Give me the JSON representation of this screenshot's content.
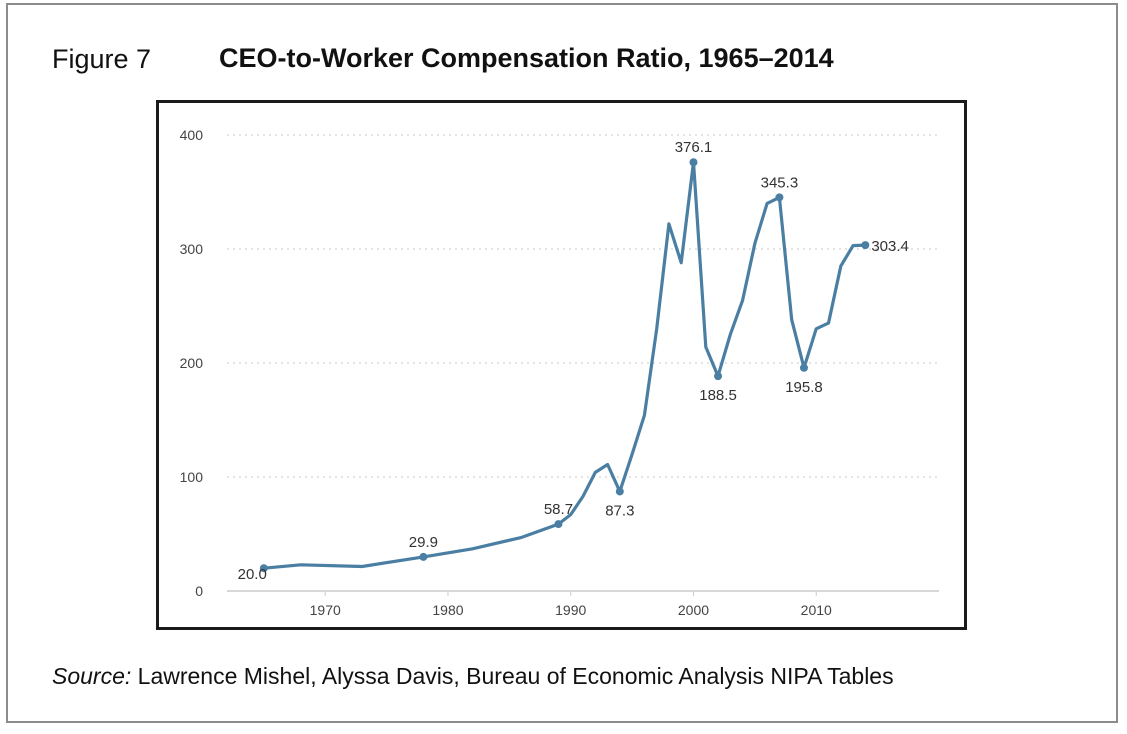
{
  "figure": {
    "label": "Figure 7",
    "title": "CEO-to-Worker Compensation Ratio, 1965–2014"
  },
  "source": {
    "lead": "Source:",
    "text": " Lawrence Mishel, Alyssa Davis, Bureau of Economic Analysis NIPA Tables"
  },
  "colors": {
    "line": "#4a7fa3",
    "grid": "#c8c8c8",
    "axis": "#cccccc"
  },
  "chart_data": {
    "type": "line",
    "title": "CEO-to-Worker Compensation Ratio, 1965–2014",
    "xlabel": "",
    "ylabel": "",
    "xlim": [
      1962,
      2020
    ],
    "ylim": [
      0,
      400
    ],
    "grid": true,
    "x_ticks": [
      1970,
      1980,
      1990,
      2000,
      2010
    ],
    "y_ticks": [
      0,
      100,
      200,
      300,
      400
    ],
    "series": [
      {
        "x": [
          1965,
          1968,
          1973,
          1978,
          1982,
          1986,
          1989,
          1990,
          1991,
          1992,
          1993,
          1994,
          1995,
          1996,
          1997,
          1998,
          1999,
          2000,
          2001,
          2002,
          2003,
          2004,
          2005,
          2006,
          2007,
          2008,
          2009,
          2010,
          2011,
          2012,
          2013,
          2014
        ],
        "y": [
          20.0,
          23,
          21.5,
          29.9,
          37,
          47,
          58.7,
          67,
          83,
          104,
          111,
          87.3,
          120,
          154,
          230,
          322,
          288,
          376.1,
          214,
          188.5,
          225,
          255,
          305,
          340,
          345.3,
          238,
          195.8,
          230,
          235,
          285,
          303,
          303.4
        ]
      }
    ],
    "annotations": [
      {
        "x": 1965,
        "y": 20.0,
        "label": "20.0",
        "pos": "left"
      },
      {
        "x": 1978,
        "y": 29.9,
        "label": "29.9",
        "pos": "above"
      },
      {
        "x": 1989,
        "y": 58.7,
        "label": "58.7",
        "pos": "above"
      },
      {
        "x": 1994,
        "y": 87.3,
        "label": "87.3",
        "pos": "below"
      },
      {
        "x": 2000,
        "y": 376.1,
        "label": "376.1",
        "pos": "above"
      },
      {
        "x": 2002,
        "y": 188.5,
        "label": "188.5",
        "pos": "below"
      },
      {
        "x": 2007,
        "y": 345.3,
        "label": "345.3",
        "pos": "above"
      },
      {
        "x": 2009,
        "y": 195.8,
        "label": "195.8",
        "pos": "below"
      },
      {
        "x": 2014,
        "y": 303.4,
        "label": "303.4",
        "pos": "right"
      }
    ]
  }
}
